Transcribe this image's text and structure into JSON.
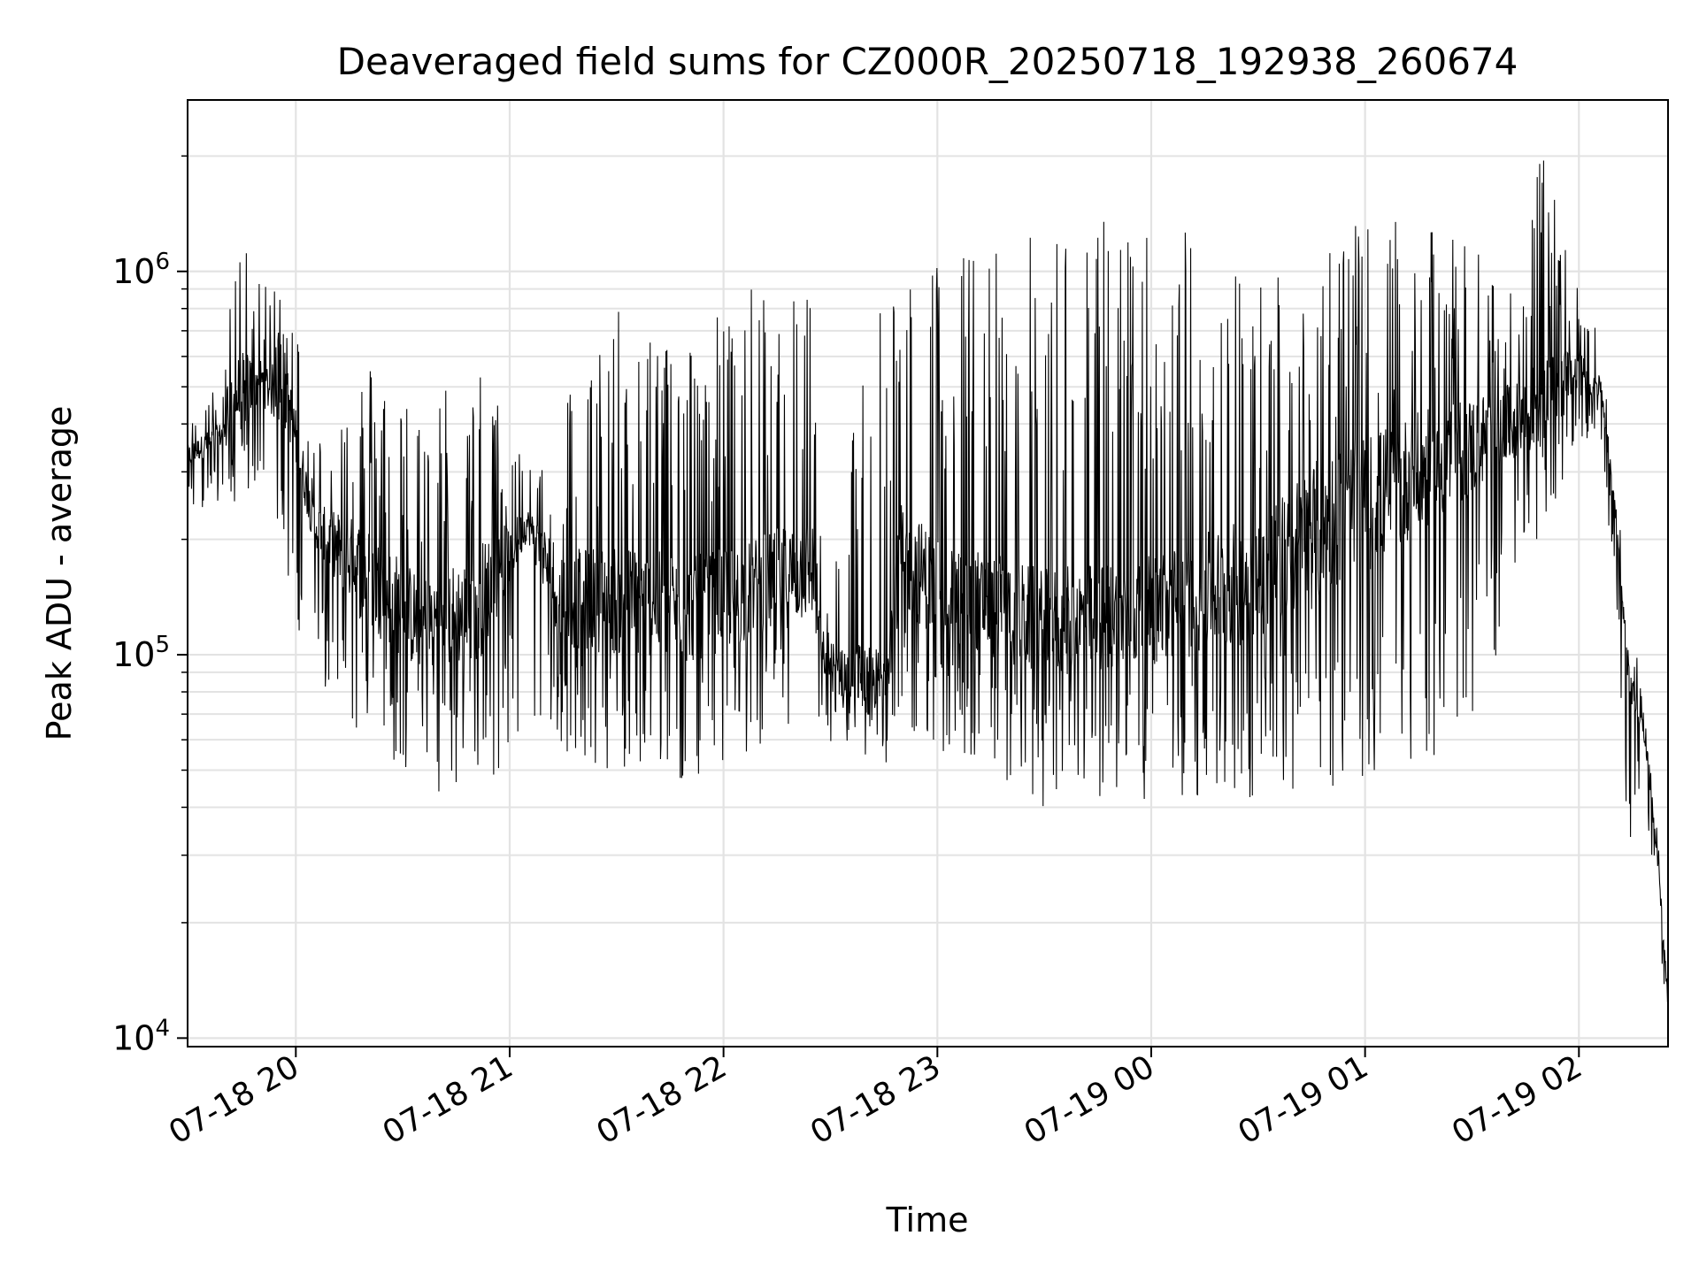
{
  "chart_data": {
    "type": "line",
    "title": "Deaveraged field sums for CZ000R_20250718_192938_260674",
    "xlabel": "Time",
    "ylabel": "Peak ADU - average",
    "yscale": "log",
    "ylim": [
      9500,
      2800000
    ],
    "xlim": [
      "2025-07-18 19:29:38",
      "2025-07-19 02:25:00"
    ],
    "y_ticks": [
      {
        "value": 10000,
        "base": "10",
        "exp": "4"
      },
      {
        "value": 100000,
        "base": "10",
        "exp": "5"
      },
      {
        "value": 1000000,
        "base": "10",
        "exp": "6"
      }
    ],
    "x_ticks": [
      {
        "value": "2025-07-18 20:00",
        "label": "07-18 20"
      },
      {
        "value": "2025-07-18 21:00",
        "label": "07-18 21"
      },
      {
        "value": "2025-07-18 22:00",
        "label": "07-18 22"
      },
      {
        "value": "2025-07-18 23:00",
        "label": "07-18 23"
      },
      {
        "value": "2025-07-19 00:00",
        "label": "07-19 00"
      },
      {
        "value": "2025-07-19 01:00",
        "label": "07-19 01"
      },
      {
        "value": "2025-07-19 02:00",
        "label": "07-19 02"
      }
    ],
    "grid": true,
    "series_color": "#000000",
    "envelope": [
      {
        "t": "2025-07-18 19:29:38",
        "low": 220000,
        "base": 330000,
        "high": 430000
      },
      {
        "t": "2025-07-18 19:40",
        "low": 260000,
        "base": 380000,
        "high": 520000
      },
      {
        "t": "2025-07-18 19:44",
        "low": 230000,
        "base": 480000,
        "high": 1800000
      },
      {
        "t": "2025-07-18 19:50",
        "low": 300000,
        "base": 520000,
        "high": 900000
      },
      {
        "t": "2025-07-18 19:58",
        "low": 150000,
        "base": 450000,
        "high": 1000000
      },
      {
        "t": "2025-07-18 20:05",
        "low": 80000,
        "base": 220000,
        "high": 360000
      },
      {
        "t": "2025-07-18 20:20",
        "low": 60000,
        "base": 160000,
        "high": 600000
      },
      {
        "t": "2025-07-18 20:35",
        "low": 45000,
        "base": 120000,
        "high": 450000
      },
      {
        "t": "2025-07-18 20:50",
        "low": 42000,
        "base": 130000,
        "high": 620000
      },
      {
        "t": "2025-07-18 21:05",
        "low": 60000,
        "base": 220000,
        "high": 320000
      },
      {
        "t": "2025-07-18 21:15",
        "low": 55000,
        "base": 140000,
        "high": 500000
      },
      {
        "t": "2025-07-18 21:30",
        "low": 45000,
        "base": 140000,
        "high": 800000
      },
      {
        "t": "2025-07-18 21:50",
        "low": 45000,
        "base": 130000,
        "high": 700000
      },
      {
        "t": "2025-07-18 22:10",
        "low": 55000,
        "base": 150000,
        "high": 950000
      },
      {
        "t": "2025-07-18 22:25",
        "low": 60000,
        "base": 170000,
        "high": 1000000
      },
      {
        "t": "2025-07-18 22:28",
        "low": 55000,
        "base": 95000,
        "high": 120000
      },
      {
        "t": "2025-07-18 22:45",
        "low": 50000,
        "base": 85000,
        "high": 1400000
      },
      {
        "t": "2025-07-18 22:50",
        "low": 60000,
        "base": 180000,
        "high": 1000000
      },
      {
        "t": "2025-07-18 23:00",
        "low": 55000,
        "base": 150000,
        "high": 1100000
      },
      {
        "t": "2025-07-18 23:30",
        "low": 40000,
        "base": 120000,
        "high": 1300000
      },
      {
        "t": "2025-07-19 00:00",
        "low": 42000,
        "base": 130000,
        "high": 1500000
      },
      {
        "t": "2025-07-19 00:30",
        "low": 42000,
        "base": 160000,
        "high": 1000000
      },
      {
        "t": "2025-07-19 00:50",
        "low": 45000,
        "base": 220000,
        "high": 1300000
      },
      {
        "t": "2025-07-19 01:10",
        "low": 50000,
        "base": 280000,
        "high": 1350000
      },
      {
        "t": "2025-07-19 01:30",
        "low": 60000,
        "base": 350000,
        "high": 1200000
      },
      {
        "t": "2025-07-19 01:45",
        "low": 180000,
        "base": 420000,
        "high": 1000000
      },
      {
        "t": "2025-07-19 01:49",
        "low": 200000,
        "base": 450000,
        "high": 2100000
      },
      {
        "t": "2025-07-19 02:00",
        "low": 350000,
        "base": 550000,
        "high": 1000000
      },
      {
        "t": "2025-07-19 02:06",
        "low": 350000,
        "base": 500000,
        "high": 650000
      },
      {
        "t": "2025-07-19 02:10",
        "low": 150000,
        "base": 250000,
        "high": 300000
      },
      {
        "t": "2025-07-19 02:14",
        "low": 30000,
        "base": 85000,
        "high": 150000
      },
      {
        "t": "2025-07-19 02:18",
        "low": 50000,
        "base": 65000,
        "high": 75000
      },
      {
        "t": "2025-07-19 02:22",
        "low": 20000,
        "base": 30000,
        "high": 35000
      },
      {
        "t": "2025-07-19 02:25",
        "low": 11000,
        "base": 12000,
        "high": 13000
      }
    ]
  }
}
